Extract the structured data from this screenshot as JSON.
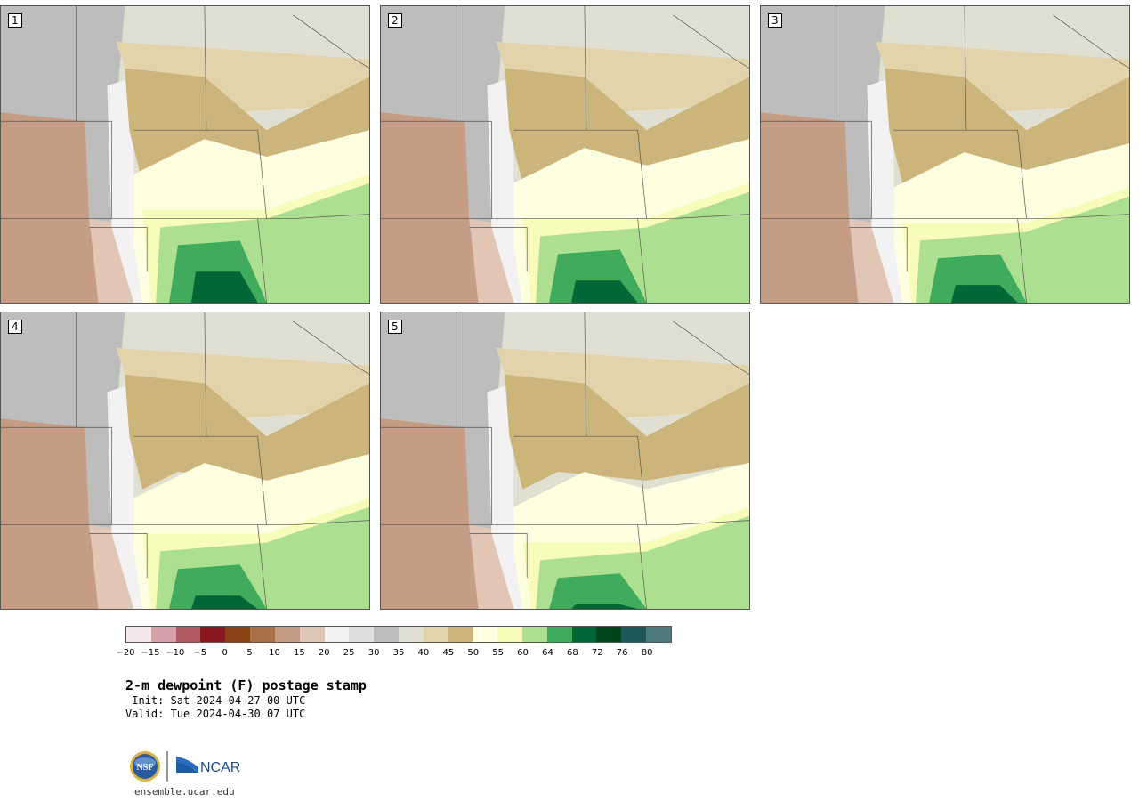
{
  "panels": [
    {
      "label": "1"
    },
    {
      "label": "2"
    },
    {
      "label": "3"
    },
    {
      "label": "4"
    },
    {
      "label": "5"
    }
  ],
  "colorbar": {
    "colors": [
      "#f6e8ea",
      "#d2a0a6",
      "#b05a62",
      "#8a1820",
      "#8a4214",
      "#aa7048",
      "#c59c84",
      "#e1c6b6",
      "#f2f2f2",
      "#dedede",
      "#bdbdbd",
      "#e0e0d2",
      "#e2d3ab",
      "#cbb57a",
      "#fefee0",
      "#f7fcb8",
      "#ace090",
      "#41ab5d",
      "#006837",
      "#00441b",
      "#1e5858",
      "#4e7a7e"
    ],
    "tick_labels": [
      "−20",
      "−15",
      "−10",
      "−5",
      "0",
      "5",
      "10",
      "15",
      "20",
      "25",
      "30",
      "35",
      "40",
      "45",
      "50",
      "55",
      "60",
      "64",
      "68",
      "72",
      "76",
      "80"
    ]
  },
  "title": "2-m dewpoint (F) postage stamp",
  "init": " Init: Sat 2024-04-27 00 UTC",
  "valid": "Valid: Tue 2024-04-30 07 UTC",
  "logo": {
    "nsf_text": "NSF",
    "ncar_text": "NCAR"
  },
  "url": "ensemble.ucar.edu"
}
